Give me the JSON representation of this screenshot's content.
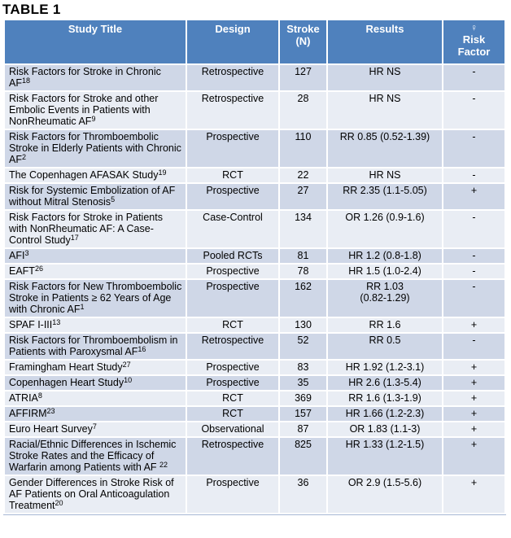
{
  "page_title": "TABLE 1",
  "colors": {
    "header_bg": "#4f81bd",
    "header_text": "#ffffff",
    "row_odd": "#cfd7e7",
    "row_even": "#e9edf4",
    "grid": "#ffffff",
    "text": "#000000",
    "edge": "#a7b7d4"
  },
  "table": {
    "female_symbol": "♀",
    "columns": [
      {
        "label": "Study Title"
      },
      {
        "label": "Design"
      },
      {
        "label": "Stroke\n(N)"
      },
      {
        "label": "Results"
      },
      {
        "label": "Risk\nFactor"
      }
    ],
    "rows": [
      {
        "title": "Risk Factors for Stroke in Chronic AF",
        "sup": "18",
        "design": "Retrospective",
        "stroke_n": "127",
        "results": "HR NS",
        "risk": "-"
      },
      {
        "title": "Risk Factors for Stroke and other Embolic Events in Patients with NonRheumatic AF",
        "sup": "9",
        "design": "Retrospective",
        "stroke_n": "28",
        "results": "HR NS",
        "risk": "-"
      },
      {
        "title": "Risk Factors for Thromboembolic Stroke in Elderly Patients with Chronic AF",
        "sup": "2",
        "design": "Prospective",
        "stroke_n": "110",
        "results": "RR 0.85 (0.52-1.39)",
        "risk": "-"
      },
      {
        "title": "The Copenhagen AFASAK Study",
        "sup": "19",
        "design": "RCT",
        "stroke_n": "22",
        "results": "HR NS",
        "risk": "-"
      },
      {
        "title": "Risk for Systemic Embolization of AF without Mitral Stenosis",
        "sup": "5",
        "design": "Prospective",
        "stroke_n": "27",
        "results": "RR 2.35 (1.1-5.05)",
        "risk": "+"
      },
      {
        "title": "Risk Factors for Stroke in Patients with NonRheumatic AF: A Case-Control Study",
        "sup": "17",
        "design": "Case-Control",
        "stroke_n": "134",
        "results": "OR 1.26 (0.9-1.6)",
        "risk": "-"
      },
      {
        "title": "AFI",
        "sup": "3",
        "design": "Pooled RCTs",
        "stroke_n": "81",
        "results": "HR 1.2 (0.8-1.8)",
        "risk": "-"
      },
      {
        "title": "EAFT",
        "sup": "26",
        "design": "Prospective",
        "stroke_n": "78",
        "results": "HR 1.5 (1.0-2.4)",
        "risk": "-"
      },
      {
        "title": "Risk Factors for New Thromboembolic Stroke in Patients ≥ 62 Years of Age with Chronic AF",
        "sup": "1",
        "design": "Prospective",
        "stroke_n": "162",
        "results": "RR 1.03\n(0.82-1.29)",
        "risk": "-"
      },
      {
        "title": "SPAF I-III",
        "sup": "13",
        "design": "RCT",
        "stroke_n": "130",
        "results": "RR 1.6",
        "risk": "+"
      },
      {
        "title": "Risk Factors for Thromboembolism in Patients with Paroxysmal AF",
        "sup": "16",
        "design": "Retrospective",
        "stroke_n": "52",
        "results": "RR 0.5",
        "risk": "-"
      },
      {
        "title": "Framingham Heart Study",
        "sup": "27",
        "design": "Prospective",
        "stroke_n": "83",
        "results": "HR 1.92 (1.2-3.1)",
        "risk": "+"
      },
      {
        "title": "Copenhagen Heart Study",
        "sup": "10",
        "design": "Prospective",
        "stroke_n": "35",
        "results": "HR 2.6 (1.3-5.4)",
        "risk": "+"
      },
      {
        "title": "ATRIA",
        "sup": "8",
        "design": "RCT",
        "stroke_n": "369",
        "results": "RR 1.6 (1.3-1.9)",
        "risk": "+"
      },
      {
        "title": "AFFIRM",
        "sup": "23",
        "design": "RCT",
        "stroke_n": "157",
        "results": "HR 1.66 (1.2-2.3)",
        "risk": "+"
      },
      {
        "title": "Euro Heart Survey",
        "sup": "7",
        "design": "Observational",
        "stroke_n": "87",
        "results": "OR 1.83 (1.1-3)",
        "risk": "+"
      },
      {
        "title": "Racial/Ethnic Differences in Ischemic Stroke Rates and the Efficacy of Warfarin among Patients with AF ",
        "sup": "22",
        "design": "Retrospective",
        "stroke_n": "825",
        "results": "HR 1.33 (1.2-1.5)",
        "risk": "+"
      },
      {
        "title": "Gender Differences in Stroke Risk of AF Patients on Oral Anticoagulation Treatment",
        "sup": "20",
        "design": "Prospective",
        "stroke_n": "36",
        "results": "OR 2.9 (1.5-5.6)",
        "risk": "+"
      }
    ]
  }
}
